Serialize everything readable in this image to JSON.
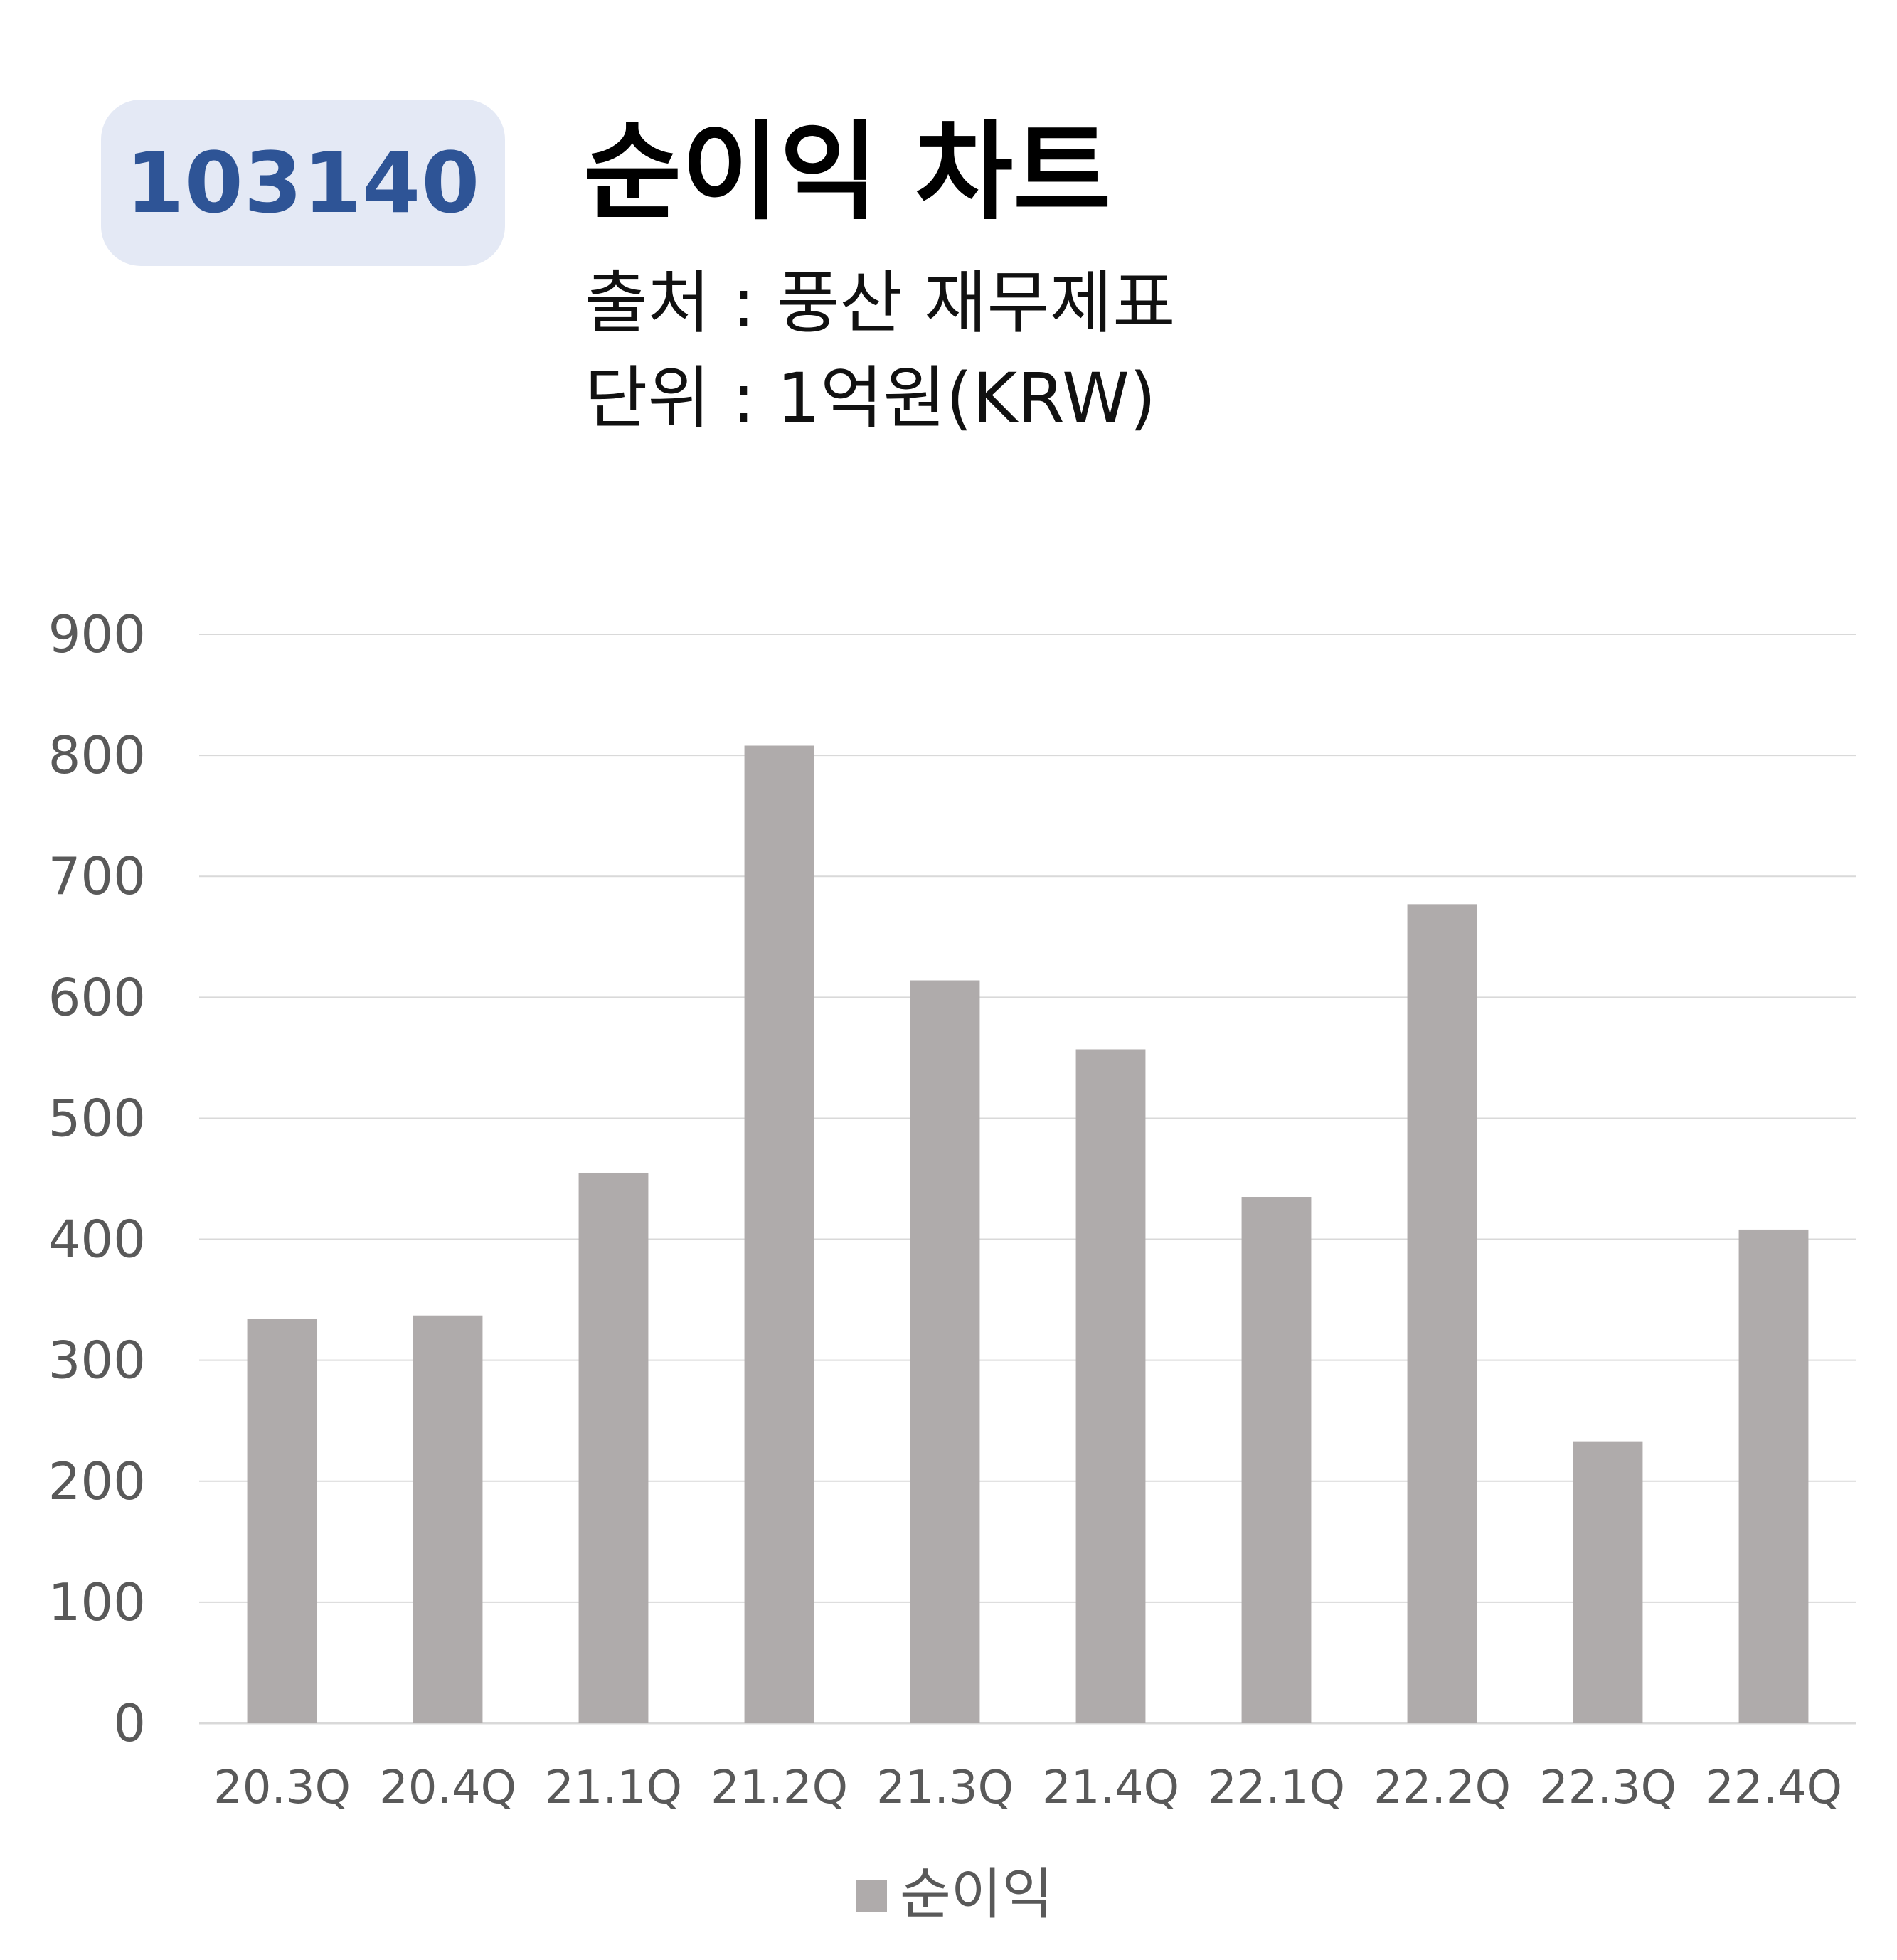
{
  "header": {
    "stock_code": "103140",
    "title": "순이익 차트",
    "source": "출처 : 풍산 재무제표",
    "unit": "단위 : 1억원(KRW)"
  },
  "colors": {
    "bar": "#afabab",
    "grid": "#d9d9d9",
    "badge_bg": "#e4e9f5",
    "badge_text": "#2e5496"
  },
  "chart_data": {
    "type": "bar",
    "categories": [
      "20.3Q",
      "20.4Q",
      "21.1Q",
      "21.2Q",
      "21.3Q",
      "21.4Q",
      "22.1Q",
      "22.2Q",
      "22.3Q",
      "22.4Q"
    ],
    "series": [
      {
        "name": "순이익",
        "values": [
          334,
          337,
          455,
          808,
          614,
          557,
          435,
          677,
          233,
          408
        ]
      }
    ],
    "yticks": [
      0,
      100,
      200,
      300,
      400,
      500,
      600,
      700,
      800,
      900
    ],
    "ylim": [
      0,
      900
    ],
    "grid": true,
    "legend": "bottom-center"
  }
}
